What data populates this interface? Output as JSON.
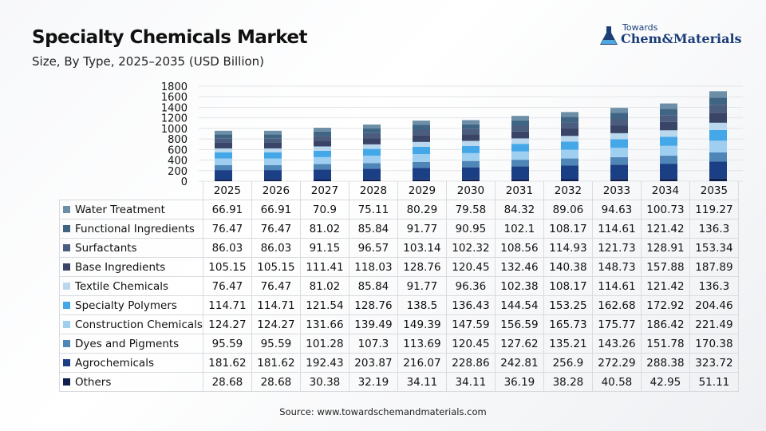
{
  "title": "Specialty Chemicals Market",
  "subtitle": "Size, By Type, 2025–2035 (USD Billion)",
  "logo": {
    "small_text": "Towards",
    "big_text": "Chem&Materials"
  },
  "source": "Source: www.towardschemandmaterials.com",
  "chart_data": {
    "type": "bar",
    "stacked": true,
    "title": "Specialty Chemicals Market",
    "subtitle": "Size, By Type, 2025–2035 (USD Billion)",
    "categories": [
      "2025",
      "2026",
      "2027",
      "2028",
      "2029",
      "2030",
      "2031",
      "2032",
      "2033",
      "2034",
      "2035"
    ],
    "ylim": [
      0,
      1800
    ],
    "yticks": [
      0,
      200,
      400,
      600,
      800,
      1000,
      1200,
      1400,
      1600,
      1800
    ],
    "series": [
      {
        "name": "Water Treatment",
        "color": "#6c8ea6",
        "values": [
          66.91,
          66.91,
          70.9,
          75.11,
          80.29,
          79.58,
          84.32,
          89.06,
          94.63,
          100.73,
          119.27
        ]
      },
      {
        "name": "Functional Ingredients",
        "color": "#3f6584",
        "values": [
          76.47,
          76.47,
          81.02,
          85.84,
          91.77,
          90.95,
          102.1,
          108.17,
          114.61,
          121.42,
          136.3
        ]
      },
      {
        "name": "Surfactants",
        "color": "#4b5d7e",
        "values": [
          86.03,
          86.03,
          91.15,
          96.57,
          103.14,
          102.32,
          108.56,
          114.93,
          121.73,
          128.91,
          153.34
        ]
      },
      {
        "name": "Base Ingredients",
        "color": "#3a4467",
        "values": [
          105.15,
          105.15,
          111.41,
          118.03,
          128.76,
          120.45,
          132.46,
          140.38,
          148.73,
          157.88,
          187.89
        ]
      },
      {
        "name": "Textile Chemicals",
        "color": "#b9d8ee",
        "values": [
          76.47,
          76.47,
          81.02,
          85.84,
          91.77,
          96.36,
          102.38,
          108.17,
          114.61,
          121.42,
          136.3
        ]
      },
      {
        "name": "Specialty Polymers",
        "color": "#43a7e8",
        "values": [
          114.71,
          114.71,
          121.54,
          128.76,
          138.5,
          136.43,
          144.54,
          153.25,
          162.68,
          172.92,
          204.46
        ]
      },
      {
        "name": "Construction Chemicals",
        "color": "#9fcff0",
        "values": [
          124.27,
          124.27,
          131.66,
          139.49,
          149.39,
          147.59,
          156.59,
          165.73,
          175.77,
          186.42,
          221.49
        ]
      },
      {
        "name": "Dyes and Pigments",
        "color": "#4f86b8",
        "values": [
          95.59,
          95.59,
          101.28,
          107.3,
          113.69,
          120.45,
          127.62,
          135.21,
          143.26,
          151.78,
          170.38
        ]
      },
      {
        "name": "Agrochemicals",
        "color": "#1b3f84",
        "values": [
          181.62,
          181.62,
          192.43,
          203.87,
          216.07,
          228.86,
          242.81,
          256.9,
          272.29,
          288.38,
          323.72
        ]
      },
      {
        "name": "Others",
        "color": "#0f1e4d",
        "values": [
          28.68,
          28.68,
          30.38,
          32.19,
          34.11,
          34.11,
          36.19,
          38.28,
          40.58,
          42.95,
          51.11
        ]
      }
    ],
    "grid": true,
    "legend": "table-below"
  }
}
